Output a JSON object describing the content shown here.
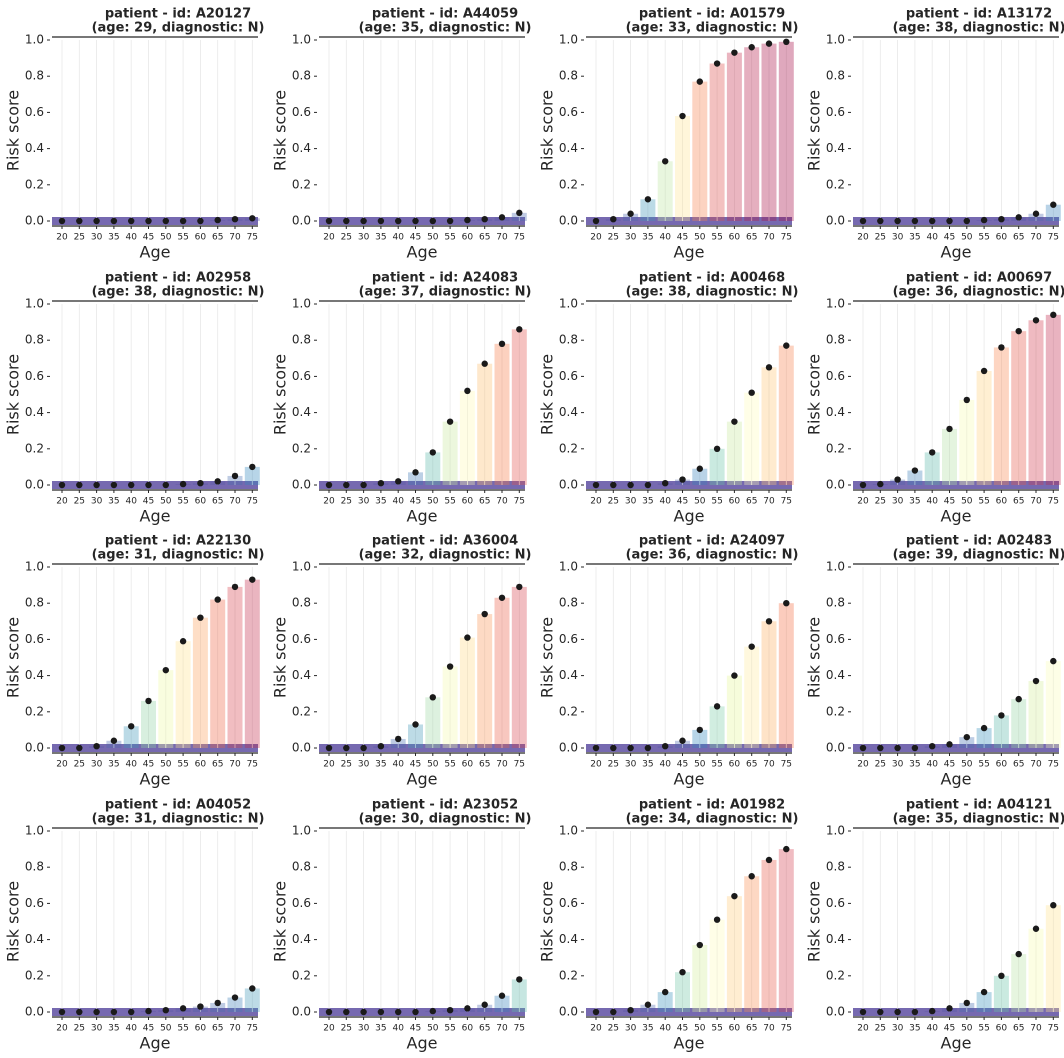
{
  "chart_data": [
    {
      "type": "dot",
      "title": "patient - id: A20127",
      "subtitle": "(age: 29, diagnostic: N)",
      "x_label": "Age",
      "y_label": "Risk score",
      "categories": [
        "20",
        "25",
        "30",
        "35",
        "40",
        "45",
        "50",
        "55",
        "60",
        "65",
        "70",
        "75"
      ],
      "values": [
        0,
        0,
        0,
        0,
        0,
        0,
        0,
        0,
        0,
        0.005,
        0.01,
        0.015
      ],
      "color": "#1a1a1a",
      "ylim": [
        0,
        1
      ],
      "yticks": [
        {
          "value": 0,
          "label": "0.0"
        },
        {
          "value": 0.2,
          "label": "0.2"
        },
        {
          "value": 0.4,
          "label": "0.4"
        },
        {
          "value": 0.6,
          "label": "0.6"
        },
        {
          "value": 0.8,
          "label": "0.8"
        },
        {
          "value": 1,
          "label": "1.0"
        }
      ]
    },
    {
      "type": "dot",
      "title": "patient - id: A44059",
      "subtitle": "(age: 35, diagnostic: N)",
      "x_label": "Age",
      "y_label": "Risk score",
      "categories": [
        "20",
        "25",
        "30",
        "35",
        "40",
        "45",
        "50",
        "55",
        "60",
        "65",
        "70",
        "75"
      ],
      "values": [
        0,
        0,
        0,
        0,
        0,
        0,
        0,
        0,
        0.005,
        0.01,
        0.02,
        0.045
      ],
      "color": "#1a1a1a",
      "ylim": [
        0,
        1
      ],
      "yticks": [
        {
          "value": 0,
          "label": "0.0"
        },
        {
          "value": 0.2,
          "label": "0.2"
        },
        {
          "value": 0.4,
          "label": "0.4"
        },
        {
          "value": 0.6,
          "label": "0.6"
        },
        {
          "value": 0.8,
          "label": "0.8"
        },
        {
          "value": 1,
          "label": "1.0"
        }
      ]
    },
    {
      "type": "dot",
      "title": "patient - id: A01579",
      "subtitle": "(age: 33, diagnostic: N)",
      "x_label": "Age",
      "y_label": "Risk score",
      "categories": [
        "20",
        "25",
        "30",
        "35",
        "40",
        "45",
        "50",
        "55",
        "60",
        "65",
        "70",
        "75"
      ],
      "values": [
        0,
        0.01,
        0.04,
        0.12,
        0.33,
        0.58,
        0.77,
        0.87,
        0.93,
        0.96,
        0.98,
        0.99
      ],
      "color": "#1a1a1a",
      "ylim": [
        0,
        1
      ],
      "yticks": [
        {
          "value": 0,
          "label": "0.0"
        },
        {
          "value": 0.2,
          "label": "0.2"
        },
        {
          "value": 0.4,
          "label": "0.4"
        },
        {
          "value": 0.6,
          "label": "0.6"
        },
        {
          "value": 0.8,
          "label": "0.8"
        },
        {
          "value": 1,
          "label": "1.0"
        }
      ]
    },
    {
      "type": "dot",
      "title": "patient - id: A13172",
      "subtitle": "(age: 38, diagnostic: N)",
      "x_label": "Age",
      "y_label": "Risk score",
      "categories": [
        "20",
        "25",
        "30",
        "35",
        "40",
        "45",
        "50",
        "55",
        "60",
        "65",
        "70",
        "75"
      ],
      "values": [
        0,
        0,
        0,
        0,
        0,
        0,
        0,
        0.005,
        0.01,
        0.02,
        0.04,
        0.09
      ],
      "color": "#1a1a1a",
      "ylim": [
        0,
        1
      ],
      "yticks": [
        {
          "value": 0,
          "label": "0.0"
        },
        {
          "value": 0.2,
          "label": "0.2"
        },
        {
          "value": 0.4,
          "label": "0.4"
        },
        {
          "value": 0.6,
          "label": "0.6"
        },
        {
          "value": 0.8,
          "label": "0.8"
        },
        {
          "value": 1,
          "label": "1.0"
        }
      ]
    },
    {
      "type": "dot",
      "title": "patient - id: A02958",
      "subtitle": "(age: 38, diagnostic: N)",
      "x_label": "Age",
      "y_label": "Risk score",
      "categories": [
        "20",
        "25",
        "30",
        "35",
        "40",
        "45",
        "50",
        "55",
        "60",
        "65",
        "70",
        "75"
      ],
      "values": [
        0,
        0,
        0,
        0,
        0,
        0,
        0,
        0.005,
        0.01,
        0.02,
        0.05,
        0.1
      ],
      "color": "#1a1a1a",
      "ylim": [
        0,
        1
      ],
      "yticks": [
        {
          "value": 0,
          "label": "0.0"
        },
        {
          "value": 0.2,
          "label": "0.2"
        },
        {
          "value": 0.4,
          "label": "0.4"
        },
        {
          "value": 0.6,
          "label": "0.6"
        },
        {
          "value": 0.8,
          "label": "0.8"
        },
        {
          "value": 1,
          "label": "1.0"
        }
      ]
    },
    {
      "type": "dot",
      "title": "patient - id: A24083",
      "subtitle": "(age: 37, diagnostic: N)",
      "x_label": "Age",
      "y_label": "Risk score",
      "categories": [
        "20",
        "25",
        "30",
        "35",
        "40",
        "45",
        "50",
        "55",
        "60",
        "65",
        "70",
        "75"
      ],
      "values": [
        0,
        0,
        0,
        0.01,
        0.02,
        0.07,
        0.18,
        0.35,
        0.52,
        0.67,
        0.78,
        0.86
      ],
      "color": "#1a1a1a",
      "ylim": [
        0,
        1
      ],
      "yticks": [
        {
          "value": 0,
          "label": "0.0"
        },
        {
          "value": 0.2,
          "label": "0.2"
        },
        {
          "value": 0.4,
          "label": "0.4"
        },
        {
          "value": 0.6,
          "label": "0.6"
        },
        {
          "value": 0.8,
          "label": "0.8"
        },
        {
          "value": 1,
          "label": "1.0"
        }
      ]
    },
    {
      "type": "dot",
      "title": "patient - id: A00468",
      "subtitle": "(age: 38, diagnostic: N)",
      "x_label": "Age",
      "y_label": "Risk score",
      "categories": [
        "20",
        "25",
        "30",
        "35",
        "40",
        "45",
        "50",
        "55",
        "60",
        "65",
        "70",
        "75"
      ],
      "values": [
        0,
        0,
        0,
        0,
        0.01,
        0.03,
        0.09,
        0.2,
        0.35,
        0.51,
        0.65,
        0.77
      ],
      "color": "#1a1a1a",
      "ylim": [
        0,
        1
      ],
      "yticks": [
        {
          "value": 0,
          "label": "0.0"
        },
        {
          "value": 0.2,
          "label": "0.2"
        },
        {
          "value": 0.4,
          "label": "0.4"
        },
        {
          "value": 0.6,
          "label": "0.6"
        },
        {
          "value": 0.8,
          "label": "0.8"
        },
        {
          "value": 1,
          "label": "1.0"
        }
      ]
    },
    {
      "type": "dot",
      "title": "patient - id: A00697",
      "subtitle": "(age: 36, diagnostic: N)",
      "x_label": "Age",
      "y_label": "Risk score",
      "categories": [
        "20",
        "25",
        "30",
        "35",
        "40",
        "45",
        "50",
        "55",
        "60",
        "65",
        "70",
        "75"
      ],
      "values": [
        0,
        0.005,
        0.03,
        0.08,
        0.18,
        0.31,
        0.47,
        0.63,
        0.76,
        0.85,
        0.91,
        0.94
      ],
      "color": "#1a1a1a",
      "ylim": [
        0,
        1
      ],
      "yticks": [
        {
          "value": 0,
          "label": "0.0"
        },
        {
          "value": 0.2,
          "label": "0.2"
        },
        {
          "value": 0.4,
          "label": "0.4"
        },
        {
          "value": 0.6,
          "label": "0.6"
        },
        {
          "value": 0.8,
          "label": "0.8"
        },
        {
          "value": 1,
          "label": "1.0"
        }
      ]
    },
    {
      "type": "dot",
      "title": "patient - id: A22130",
      "subtitle": "(age: 31, diagnostic: N)",
      "x_label": "Age",
      "y_label": "Risk score",
      "categories": [
        "20",
        "25",
        "30",
        "35",
        "40",
        "45",
        "50",
        "55",
        "60",
        "65",
        "70",
        "75"
      ],
      "values": [
        0,
        0,
        0.01,
        0.04,
        0.12,
        0.26,
        0.43,
        0.59,
        0.72,
        0.82,
        0.89,
        0.93
      ],
      "color": "#1a1a1a",
      "ylim": [
        0,
        1
      ],
      "yticks": [
        {
          "value": 0,
          "label": "0.0"
        },
        {
          "value": 0.2,
          "label": "0.2"
        },
        {
          "value": 0.4,
          "label": "0.4"
        },
        {
          "value": 0.6,
          "label": "0.6"
        },
        {
          "value": 0.8,
          "label": "0.8"
        },
        {
          "value": 1,
          "label": "1.0"
        }
      ]
    },
    {
      "type": "dot",
      "title": "patient - id: A36004",
      "subtitle": "(age: 32, diagnostic: N)",
      "x_label": "Age",
      "y_label": "Risk score",
      "categories": [
        "20",
        "25",
        "30",
        "35",
        "40",
        "45",
        "50",
        "55",
        "60",
        "65",
        "70",
        "75"
      ],
      "values": [
        0,
        0,
        0,
        0.01,
        0.05,
        0.13,
        0.28,
        0.45,
        0.61,
        0.74,
        0.83,
        0.89
      ],
      "color": "#1a1a1a",
      "ylim": [
        0,
        1
      ],
      "yticks": [
        {
          "value": 0,
          "label": "0.0"
        },
        {
          "value": 0.2,
          "label": "0.2"
        },
        {
          "value": 0.4,
          "label": "0.4"
        },
        {
          "value": 0.6,
          "label": "0.6"
        },
        {
          "value": 0.8,
          "label": "0.8"
        },
        {
          "value": 1,
          "label": "1.0"
        }
      ]
    },
    {
      "type": "dot",
      "title": "patient - id: A24097",
      "subtitle": "(age: 36, diagnostic: N)",
      "x_label": "Age",
      "y_label": "Risk score",
      "categories": [
        "20",
        "25",
        "30",
        "35",
        "40",
        "45",
        "50",
        "55",
        "60",
        "65",
        "70",
        "75"
      ],
      "values": [
        0,
        0,
        0,
        0,
        0.01,
        0.04,
        0.1,
        0.23,
        0.4,
        0.56,
        0.7,
        0.8
      ],
      "color": "#1a1a1a",
      "ylim": [
        0,
        1
      ],
      "yticks": [
        {
          "value": 0,
          "label": "0.0"
        },
        {
          "value": 0.2,
          "label": "0.2"
        },
        {
          "value": 0.4,
          "label": "0.4"
        },
        {
          "value": 0.6,
          "label": "0.6"
        },
        {
          "value": 0.8,
          "label": "0.8"
        },
        {
          "value": 1,
          "label": "1.0"
        }
      ]
    },
    {
      "type": "dot",
      "title": "patient - id: A02483",
      "subtitle": "(age: 39, diagnostic: N)",
      "x_label": "Age",
      "y_label": "Risk score",
      "categories": [
        "20",
        "25",
        "30",
        "35",
        "40",
        "45",
        "50",
        "55",
        "60",
        "65",
        "70",
        "75"
      ],
      "values": [
        0,
        0,
        0,
        0,
        0.01,
        0.02,
        0.06,
        0.11,
        0.18,
        0.27,
        0.37,
        0.48
      ],
      "color": "#1a1a1a",
      "ylim": [
        0,
        1
      ],
      "yticks": [
        {
          "value": 0,
          "label": "0.0"
        },
        {
          "value": 0.2,
          "label": "0.2"
        },
        {
          "value": 0.4,
          "label": "0.4"
        },
        {
          "value": 0.6,
          "label": "0.6"
        },
        {
          "value": 0.8,
          "label": "0.8"
        },
        {
          "value": 1,
          "label": "1.0"
        }
      ]
    },
    {
      "type": "dot",
      "title": "patient - id: A04052",
      "subtitle": "(age: 31, diagnostic: N)",
      "x_label": "Age",
      "y_label": "Risk score",
      "categories": [
        "20",
        "25",
        "30",
        "35",
        "40",
        "45",
        "50",
        "55",
        "60",
        "65",
        "70",
        "75"
      ],
      "values": [
        0,
        0,
        0,
        0,
        0,
        0.005,
        0.01,
        0.02,
        0.03,
        0.05,
        0.08,
        0.13
      ],
      "color": "#1a1a1a",
      "ylim": [
        0,
        1
      ],
      "yticks": [
        {
          "value": 0,
          "label": "0.0"
        },
        {
          "value": 0.2,
          "label": "0.2"
        },
        {
          "value": 0.4,
          "label": "0.4"
        },
        {
          "value": 0.6,
          "label": "0.6"
        },
        {
          "value": 0.8,
          "label": "0.8"
        },
        {
          "value": 1,
          "label": "1.0"
        }
      ]
    },
    {
      "type": "dot",
      "title": "patient - id: A23052",
      "subtitle": "(age: 30, diagnostic: N)",
      "x_label": "Age",
      "y_label": "Risk score",
      "categories": [
        "20",
        "25",
        "30",
        "35",
        "40",
        "45",
        "50",
        "55",
        "60",
        "65",
        "70",
        "75"
      ],
      "values": [
        0,
        0,
        0,
        0,
        0,
        0,
        0.005,
        0.01,
        0.02,
        0.04,
        0.09,
        0.18
      ],
      "color": "#1a1a1a",
      "ylim": [
        0,
        1
      ],
      "yticks": [
        {
          "value": 0,
          "label": "0.0"
        },
        {
          "value": 0.2,
          "label": "0.2"
        },
        {
          "value": 0.4,
          "label": "0.4"
        },
        {
          "value": 0.6,
          "label": "0.6"
        },
        {
          "value": 0.8,
          "label": "0.8"
        },
        {
          "value": 1,
          "label": "1.0"
        }
      ]
    },
    {
      "type": "dot",
      "title": "patient - id: A01982",
      "subtitle": "(age: 34, diagnostic: N)",
      "x_label": "Age",
      "y_label": "Risk score",
      "categories": [
        "20",
        "25",
        "30",
        "35",
        "40",
        "45",
        "50",
        "55",
        "60",
        "65",
        "70",
        "75"
      ],
      "values": [
        0,
        0,
        0.01,
        0.04,
        0.11,
        0.22,
        0.37,
        0.51,
        0.64,
        0.75,
        0.84,
        0.9
      ],
      "color": "#1a1a1a",
      "ylim": [
        0,
        1
      ],
      "yticks": [
        {
          "value": 0,
          "label": "0.0"
        },
        {
          "value": 0.2,
          "label": "0.2"
        },
        {
          "value": 0.4,
          "label": "0.4"
        },
        {
          "value": 0.6,
          "label": "0.6"
        },
        {
          "value": 0.8,
          "label": "0.8"
        },
        {
          "value": 1,
          "label": "1.0"
        }
      ]
    },
    {
      "type": "dot",
      "title": "patient - id: A04121",
      "subtitle": "(age: 35, diagnostic: N)",
      "x_label": "Age",
      "y_label": "Risk score",
      "categories": [
        "20",
        "25",
        "30",
        "35",
        "40",
        "45",
        "50",
        "55",
        "60",
        "65",
        "70",
        "75"
      ],
      "values": [
        0,
        0,
        0,
        0,
        0.005,
        0.02,
        0.05,
        0.11,
        0.2,
        0.32,
        0.46,
        0.59
      ],
      "color": "#1a1a1a",
      "ylim": [
        0,
        1
      ],
      "yticks": [
        {
          "value": 0,
          "label": "0.0"
        },
        {
          "value": 0.2,
          "label": "0.2"
        },
        {
          "value": 0.4,
          "label": "0.4"
        },
        {
          "value": 0.6,
          "label": "0.6"
        },
        {
          "value": 0.8,
          "label": "0.8"
        },
        {
          "value": 1,
          "label": "1.0"
        }
      ]
    }
  ]
}
